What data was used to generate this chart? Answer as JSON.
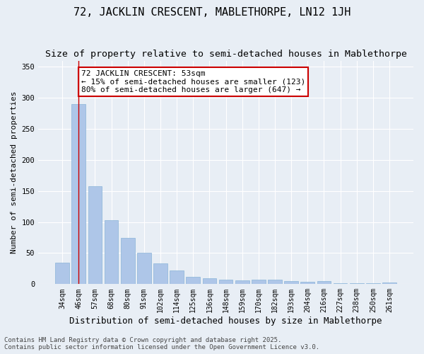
{
  "title1": "72, JACKLIN CRESCENT, MABLETHORPE, LN12 1JH",
  "title2": "Size of property relative to semi-detached houses in Mablethorpe",
  "xlabel": "Distribution of semi-detached houses by size in Mablethorpe",
  "ylabel": "Number of semi-detached properties",
  "categories": [
    "34sqm",
    "46sqm",
    "57sqm",
    "68sqm",
    "80sqm",
    "91sqm",
    "102sqm",
    "114sqm",
    "125sqm",
    "136sqm",
    "148sqm",
    "159sqm",
    "170sqm",
    "182sqm",
    "193sqm",
    "204sqm",
    "216sqm",
    "227sqm",
    "238sqm",
    "250sqm",
    "261sqm"
  ],
  "values": [
    35,
    290,
    158,
    103,
    75,
    50,
    33,
    22,
    12,
    9,
    7,
    6,
    7,
    7,
    5,
    4,
    5,
    2,
    2,
    2,
    3
  ],
  "bar_color": "#aec6e8",
  "bar_edge_color": "#8ab4d8",
  "vline_x": 1,
  "vline_color": "#cc0000",
  "annotation_text": "72 JACKLIN CRESCENT: 53sqm\n← 15% of semi-detached houses are smaller (123)\n80% of semi-detached houses are larger (647) →",
  "annotation_box_color": "#ffffff",
  "annotation_box_edge": "#cc0000",
  "ylim": [
    0,
    360
  ],
  "yticks": [
    0,
    50,
    100,
    150,
    200,
    250,
    300,
    350
  ],
  "footer1": "Contains HM Land Registry data © Crown copyright and database right 2025.",
  "footer2": "Contains public sector information licensed under the Open Government Licence v3.0.",
  "background_color": "#e8eef5",
  "plot_bg_color": "#e8eef5",
  "title1_fontsize": 11,
  "title2_fontsize": 9.5,
  "xlabel_fontsize": 9,
  "ylabel_fontsize": 8,
  "tick_fontsize": 7,
  "footer_fontsize": 6.5,
  "annotation_fontsize": 8
}
